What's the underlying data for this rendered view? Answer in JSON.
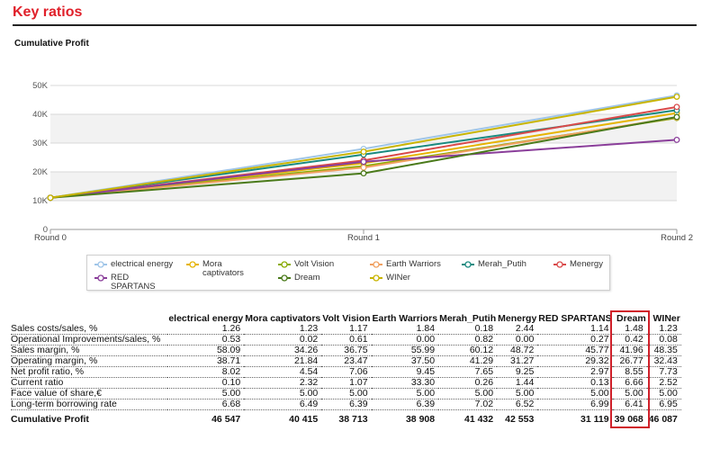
{
  "page_title": "Key ratios",
  "chart_data": {
    "type": "line",
    "title": "Cumulative Profit",
    "xlabel": "",
    "ylabel": "",
    "categories": [
      "Round 0",
      "Round 1",
      "Round 2"
    ],
    "ylim": [
      0,
      50000
    ],
    "y_ticks": [
      0,
      10000,
      20000,
      30000,
      40000,
      50000
    ],
    "y_tick_labels": [
      "0",
      "10K",
      "20K",
      "30K",
      "40K",
      "50K"
    ],
    "grid": true,
    "legend_position": "bottom",
    "series": [
      {
        "name": "electrical energy",
        "color": "#9fc5e8",
        "values": [
          11000,
          28000,
          46547
        ]
      },
      {
        "name": "Mora captivators",
        "color": "#e6b400",
        "values": [
          11000,
          23000,
          40415
        ]
      },
      {
        "name": "Volt Vision",
        "color": "#8aab00",
        "values": [
          11000,
          22000,
          38713
        ]
      },
      {
        "name": "Earth Warriors",
        "color": "#f0a060",
        "values": [
          11000,
          21500,
          38908
        ]
      },
      {
        "name": "Merah_Putih",
        "color": "#1a8a80",
        "values": [
          11000,
          26000,
          41432
        ]
      },
      {
        "name": "Menergy",
        "color": "#d94a4a",
        "values": [
          11000,
          24000,
          42553
        ]
      },
      {
        "name": "RED SPARTANS",
        "color": "#8a3e9a",
        "values": [
          11000,
          23500,
          31119
        ]
      },
      {
        "name": "Dream",
        "color": "#4a7a1a",
        "values": [
          11000,
          19500,
          39068
        ]
      },
      {
        "name": "WINer",
        "color": "#c8b400",
        "values": [
          11000,
          27000,
          46087
        ]
      }
    ]
  },
  "table": {
    "columns": [
      "electrical energy",
      "Mora captivators",
      "Volt Vision",
      "Earth Warriors",
      "Merah_Putih",
      "Menergy",
      "RED SPARTANS",
      "Dream",
      "WINer"
    ],
    "rows": [
      {
        "label": "Sales costs/sales, %",
        "values": [
          "1.26",
          "1.23",
          "1.17",
          "1.84",
          "0.18",
          "2.44",
          "1.14",
          "1.48",
          "1.23"
        ]
      },
      {
        "label": "Operational Improvements/sales, %",
        "values": [
          "0.53",
          "0.02",
          "0.61",
          "0.00",
          "0.82",
          "0.00",
          "0.27",
          "0.42",
          "0.08"
        ]
      },
      {
        "label": "Sales margin, %",
        "values": [
          "58.09",
          "34.26",
          "36.75",
          "55.99",
          "60.12",
          "48.72",
          "45.77",
          "41.96",
          "48.35"
        ]
      },
      {
        "label": "Operating margin, %",
        "values": [
          "38.71",
          "21.84",
          "23.47",
          "37.50",
          "41.29",
          "31.27",
          "29.32",
          "26.77",
          "32.43"
        ]
      },
      {
        "label": "Net profit ratio, %",
        "values": [
          "8.02",
          "4.54",
          "7.06",
          "9.45",
          "7.65",
          "9.25",
          "2.97",
          "8.55",
          "7.73"
        ]
      },
      {
        "label": "Current ratio",
        "values": [
          "0.10",
          "2.32",
          "1.07",
          "33.30",
          "0.26",
          "1.44",
          "0.13",
          "6.66",
          "2.52"
        ]
      },
      {
        "label": "Face value of share,€",
        "values": [
          "5.00",
          "5.00",
          "5.00",
          "5.00",
          "5.00",
          "5.00",
          "5.00",
          "5.00",
          "5.00"
        ]
      },
      {
        "label": "Long-term borrowing rate",
        "values": [
          "6.68",
          "6.49",
          "6.39",
          "6.39",
          "7.02",
          "6.52",
          "6.99",
          "6.41",
          "6.95"
        ]
      }
    ],
    "total": {
      "label": "Cumulative Profit",
      "values": [
        "46 547",
        "40 415",
        "38 713",
        "38 908",
        "41 432",
        "42 553",
        "31 119",
        "39 068",
        "46 087"
      ]
    },
    "highlight_column": "Dream",
    "highlight_color": "#d0202a"
  }
}
